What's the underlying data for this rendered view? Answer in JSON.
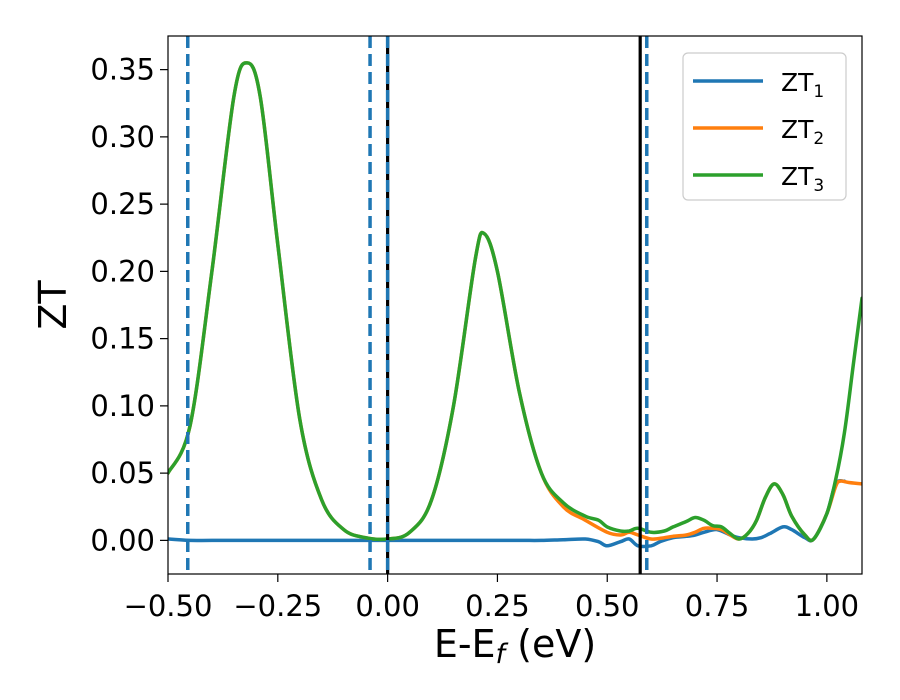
{
  "chart_data": {
    "type": "line",
    "title": "",
    "xlabel": "E-E",
    "xlabel_sub": "f",
    "xlabel_unit": " (eV)",
    "ylabel": "ZT",
    "xlim": [
      -0.5,
      1.08
    ],
    "ylim": [
      -0.025,
      0.375
    ],
    "xticks": [
      -0.5,
      -0.25,
      0.0,
      0.25,
      0.5,
      0.75,
      1.0
    ],
    "xtick_labels": [
      "−0.50",
      "−0.25",
      "0.00",
      "0.25",
      "0.50",
      "0.75",
      "1.00"
    ],
    "yticks": [
      0.0,
      0.05,
      0.1,
      0.15,
      0.2,
      0.25,
      0.3,
      0.35
    ],
    "ytick_labels": [
      "0.00",
      "0.05",
      "0.10",
      "0.15",
      "0.20",
      "0.25",
      "0.30",
      "0.35"
    ],
    "grid": false,
    "legend_position": "top-right",
    "legend": [
      {
        "label": "ZT",
        "sub": "1",
        "color": "#1f77b4"
      },
      {
        "label": "ZT",
        "sub": "2",
        "color": "#ff7f0e"
      },
      {
        "label": "ZT",
        "sub": "3",
        "color": "#2ca02c"
      }
    ],
    "series": [
      {
        "name": "ZT1",
        "color": "#1f77b4",
        "x": [
          -0.5,
          -0.45,
          -0.4,
          -0.3,
          -0.2,
          -0.1,
          0,
          0.1,
          0.2,
          0.3,
          0.35,
          0.4,
          0.45,
          0.48,
          0.5,
          0.53,
          0.55,
          0.57,
          0.6,
          0.62,
          0.65,
          0.68,
          0.7,
          0.72,
          0.75,
          0.78,
          0.8,
          0.83,
          0.85,
          0.87,
          0.9,
          0.92,
          0.95,
          0.97,
          1.0,
          1.02,
          1.04
        ],
        "values": [
          0.001,
          0.0,
          0.0,
          0.0,
          0.0,
          0.0,
          0.0,
          0.0,
          0.0,
          0.0,
          0.0,
          0.0005,
          0.001,
          -0.001,
          -0.004,
          -0.001,
          0.001,
          -0.004,
          -0.004,
          -0.001,
          0.002,
          0.003,
          0.004,
          0.006,
          0.008,
          0.004,
          0.002,
          0.001,
          0.002,
          0.005,
          0.01,
          0.008,
          0.002,
          0.001,
          0.02,
          0.042,
          0.044
        ]
      },
      {
        "name": "ZT2",
        "color": "#ff7f0e",
        "x": [
          -0.5,
          -0.45,
          -0.4,
          -0.35,
          -0.32,
          -0.29,
          -0.25,
          -0.2,
          -0.15,
          -0.1,
          -0.05,
          0.0,
          0.05,
          0.1,
          0.15,
          0.2,
          0.22,
          0.25,
          0.3,
          0.35,
          0.4,
          0.45,
          0.5,
          0.53,
          0.55,
          0.57,
          0.6,
          0.63,
          0.65,
          0.68,
          0.7,
          0.72,
          0.74,
          0.76,
          0.78,
          0.8,
          0.82,
          0.84,
          0.86,
          0.88,
          0.9,
          0.92,
          0.95,
          0.97,
          1.0,
          1.02,
          1.03,
          1.05,
          1.08
        ],
        "values": [
          0.05,
          0.085,
          0.2,
          0.33,
          0.355,
          0.33,
          0.22,
          0.09,
          0.03,
          0.008,
          0.002,
          0.001,
          0.006,
          0.03,
          0.1,
          0.21,
          0.228,
          0.2,
          0.11,
          0.05,
          0.025,
          0.015,
          0.006,
          0.004,
          0.006,
          0.004,
          0.001,
          0.002,
          0.003,
          0.004,
          0.006,
          0.009,
          0.009,
          0.008,
          0.004,
          0.001,
          0.005,
          0.015,
          0.032,
          0.042,
          0.034,
          0.018,
          0.004,
          0.001,
          0.02,
          0.04,
          0.044,
          0.043,
          0.042
        ]
      },
      {
        "name": "ZT3",
        "color": "#2ca02c",
        "x": [
          -0.5,
          -0.45,
          -0.4,
          -0.35,
          -0.32,
          -0.29,
          -0.25,
          -0.2,
          -0.15,
          -0.1,
          -0.05,
          0.0,
          0.05,
          0.1,
          0.15,
          0.2,
          0.22,
          0.25,
          0.3,
          0.35,
          0.4,
          0.45,
          0.48,
          0.5,
          0.53,
          0.55,
          0.57,
          0.6,
          0.63,
          0.65,
          0.68,
          0.7,
          0.72,
          0.74,
          0.76,
          0.78,
          0.8,
          0.82,
          0.84,
          0.86,
          0.88,
          0.9,
          0.92,
          0.95,
          0.97,
          1.0,
          1.02,
          1.04,
          1.06,
          1.08
        ],
        "values": [
          0.05,
          0.085,
          0.2,
          0.33,
          0.355,
          0.33,
          0.22,
          0.09,
          0.03,
          0.008,
          0.002,
          0.001,
          0.006,
          0.03,
          0.1,
          0.21,
          0.228,
          0.2,
          0.11,
          0.05,
          0.028,
          0.018,
          0.015,
          0.01,
          0.007,
          0.007,
          0.009,
          0.006,
          0.007,
          0.01,
          0.014,
          0.017,
          0.015,
          0.011,
          0.01,
          0.005,
          0.001,
          0.005,
          0.015,
          0.032,
          0.042,
          0.034,
          0.018,
          0.004,
          0.001,
          0.02,
          0.045,
          0.08,
          0.13,
          0.18
        ]
      }
    ],
    "vlines": [
      {
        "x": -0.455,
        "style": "dashed",
        "color": "#1f77b4"
      },
      {
        "x": -0.04,
        "style": "dashed",
        "color": "#1f77b4"
      },
      {
        "x": 0.0,
        "style": "solid",
        "color": "#000000"
      },
      {
        "x": 0.0,
        "style": "dashed",
        "color": "#1f77b4"
      },
      {
        "x": 0.575,
        "style": "solid",
        "color": "#000000"
      },
      {
        "x": 0.59,
        "style": "dashed",
        "color": "#1f77b4"
      }
    ]
  }
}
